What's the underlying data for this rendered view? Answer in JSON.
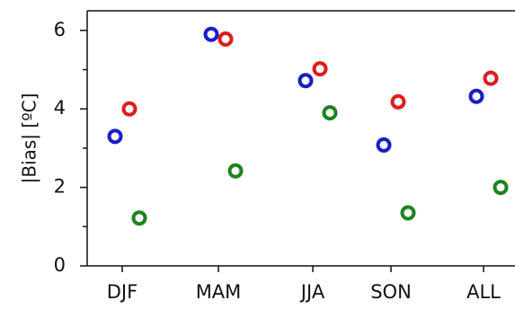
{
  "chart_data": {
    "type": "scatter",
    "title": "",
    "xlabel": "",
    "ylabel": "|Bias| [ºC]",
    "categories": [
      "DJF",
      "MAM",
      "JJA",
      "SON",
      "ALL"
    ],
    "ylim": [
      0,
      6.5
    ],
    "yticks": [
      0,
      2,
      4,
      6
    ],
    "y_minor_ticks": [
      1,
      3,
      5
    ],
    "grid": false,
    "legend": "none",
    "series": [
      {
        "color": "#1c1cc8",
        "values": [
          3.3,
          5.9,
          4.72,
          3.08,
          4.32
        ]
      },
      {
        "color": "#dc1e1e",
        "values": [
          4.0,
          5.78,
          5.02,
          4.18,
          4.78
        ]
      },
      {
        "color": "#1e821e",
        "values": [
          1.22,
          2.42,
          3.9,
          1.35,
          2.0
        ]
      }
    ]
  }
}
